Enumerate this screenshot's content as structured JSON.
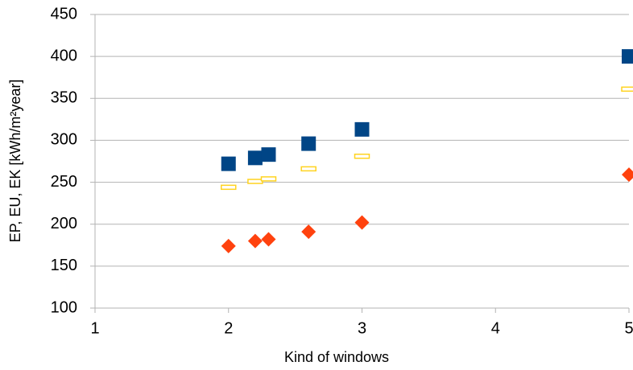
{
  "chart_data": {
    "type": "scatter",
    "x_label": "Kind of windows",
    "y_label": "EP, EU, EK [kWh/m²year]",
    "x": [
      2,
      2.2,
      2.3,
      2.6,
      3,
      5
    ],
    "series": [
      {
        "color": "#004586",
        "marker": "square",
        "values": [
          272,
          279,
          283,
          296,
          313,
          400
        ]
      },
      {
        "color": "#ffd320",
        "marker": "dash",
        "values": [
          244,
          251,
          254,
          266,
          281,
          361
        ]
      },
      {
        "color": "#ff420e",
        "marker": "diamond",
        "values": [
          174,
          180,
          182,
          191,
          202,
          259
        ]
      }
    ],
    "xlim": [
      1,
      5
    ],
    "xticks": [
      1,
      2,
      3,
      4,
      5
    ],
    "ylim": [
      100,
      450
    ],
    "yticks": [
      100,
      150,
      200,
      250,
      300,
      350,
      400,
      450
    ],
    "grid": true
  }
}
